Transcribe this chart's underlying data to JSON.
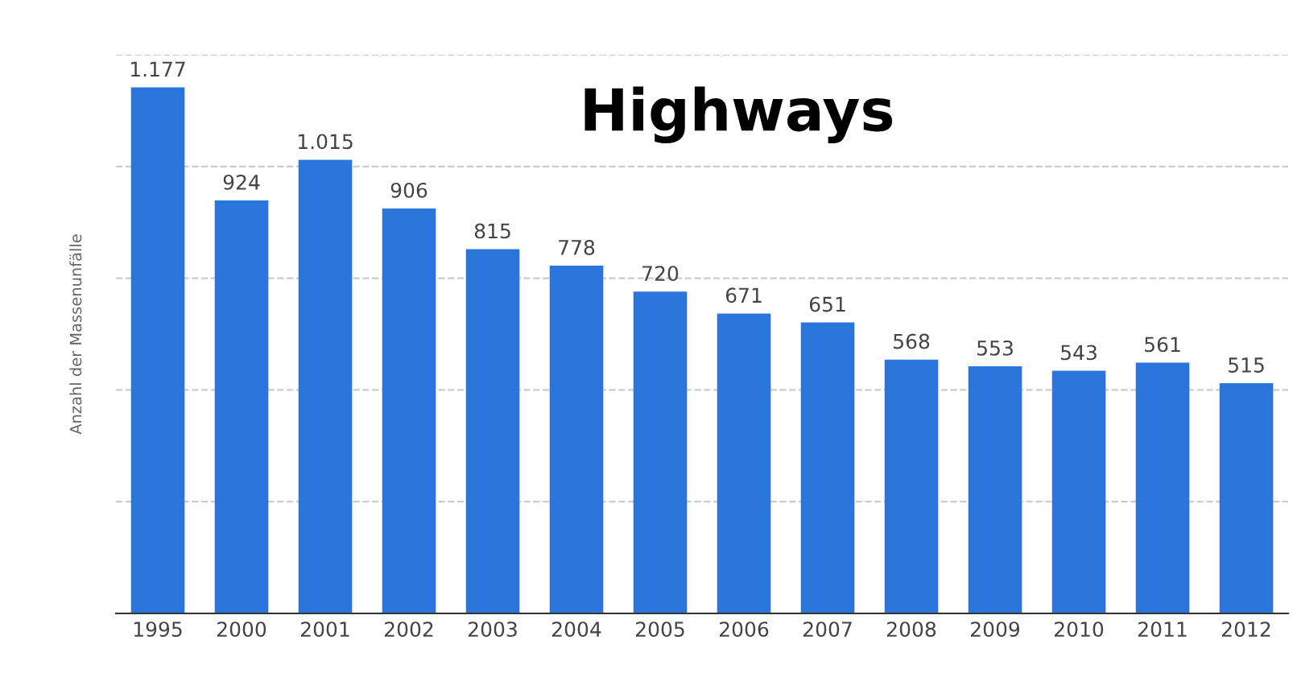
{
  "chart_data": {
    "type": "bar",
    "title": "Highways",
    "ylabel": "Anzahl der Massenunfälle",
    "categories": [
      "1995",
      "2000",
      "2001",
      "2002",
      "2003",
      "2004",
      "2005",
      "2006",
      "2007",
      "2008",
      "2009",
      "2010",
      "2011",
      "2012"
    ],
    "values": [
      1177,
      924,
      1015,
      906,
      815,
      778,
      720,
      671,
      651,
      568,
      553,
      543,
      561,
      515
    ],
    "value_labels": [
      "1.177",
      "924",
      "1.015",
      "906",
      "815",
      "778",
      "720",
      "671",
      "651",
      "568",
      "553",
      "543",
      "561",
      "515"
    ],
    "color": "#2a76dd",
    "ylim": [
      0,
      1250
    ],
    "yticks": [
      {
        "value": 0,
        "label": null
      },
      {
        "value": 250,
        "label": null
      },
      {
        "value": 500,
        "label": null
      },
      {
        "value": 750,
        "label": null
      },
      {
        "value": 1000,
        "label": null
      },
      {
        "value": 1250,
        "label": null
      }
    ],
    "tick_labels": "x",
    "grid": "y",
    "line_style": "dashed"
  }
}
